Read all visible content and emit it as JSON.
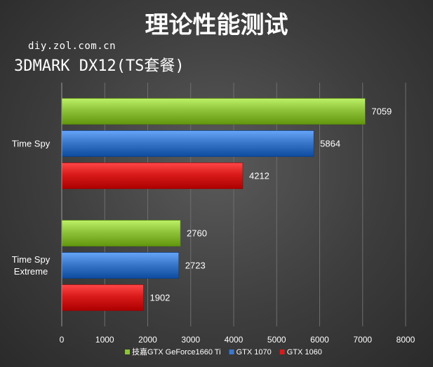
{
  "header": {
    "title": "理论性能测试",
    "watermark": "diy.zol.com.cn",
    "subtitle": "3DMARK DX12(TS套餐)"
  },
  "chart_data": {
    "type": "bar",
    "orientation": "horizontal",
    "title": "理论性能测试",
    "subtitle": "3DMARK DX12(TS套餐)",
    "categories": [
      "Time Spy",
      "Time Spy Extreme"
    ],
    "series": [
      {
        "name": "技嘉GTX GeForce1660 Ti",
        "color": "#8fc43a",
        "values": [
          7059,
          2760
        ]
      },
      {
        "name": "GTX 1070",
        "color": "#3a78cc",
        "values": [
          5864,
          2723
        ]
      },
      {
        "name": "GTX 1060",
        "color": "#d91a1a",
        "values": [
          4212,
          1902
        ]
      }
    ],
    "xlim": [
      0,
      8000
    ],
    "xticks": [
      0,
      1000,
      2000,
      3000,
      4000,
      5000,
      6000,
      7000,
      8000
    ],
    "grid": true,
    "legend_position": "bottom"
  }
}
